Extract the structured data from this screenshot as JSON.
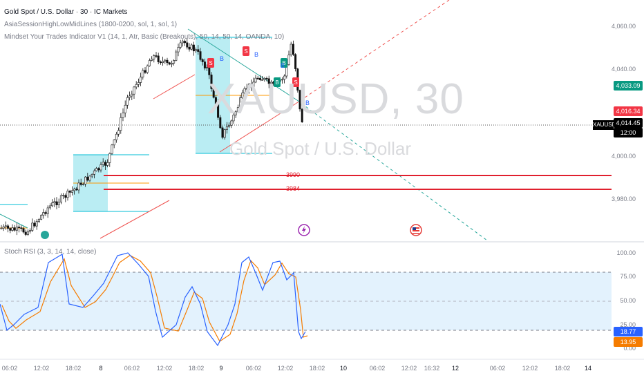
{
  "header": {
    "title": "Gold Spot / U.S. Dollar · 30 · IC Markets",
    "indicator1": "AsiaSessionHighLowMidLines (1800-0200, sol, 1, sol, 1)",
    "indicator2": "Mindset Your Trades Indicator V1 (14, 1, Atr, Basic (Breakouts), 50, 14, 50, 14, OANDA, 10)"
  },
  "watermark": {
    "symbol": "XAUUSD, 30",
    "name": "Gold Spot / U.S. Dollar"
  },
  "price_axis": {
    "ticks": [
      "4,060.00",
      "4,040.00",
      "4,000.00",
      "3,980.00"
    ]
  },
  "price_tags": {
    "green": "4,033.09",
    "red": "4,016.34",
    "symbol": "XAUUSD",
    "current": "4,014.45",
    "countdown": "12:00"
  },
  "levels": [
    {
      "label": "3990"
    },
    {
      "label": "3984"
    }
  ],
  "signals": {
    "sell": "S",
    "buy": "B"
  },
  "rsi": {
    "title": "Stoch RSI (3, 3, 14, 14, close)",
    "ticks": [
      "100.00",
      "75.00",
      "50.00",
      "25.00",
      "0.00"
    ],
    "k_value": "18.77",
    "d_value": "13.95"
  },
  "time_axis": [
    "06:02",
    "12:02",
    "18:02",
    "8",
    "06:02",
    "12:02",
    "18:02",
    "9",
    "06:02",
    "12:02",
    "18:02",
    "10",
    "06:02",
    "12:02",
    "16:32",
    "12",
    "06:02",
    "12:02",
    "18:02",
    "14"
  ],
  "colors": {
    "up": "#26a69a",
    "down": "#ef5350",
    "box": "#b2ebf2",
    "k": "#2962ff",
    "d": "#f57c00",
    "red_line": "#e0202e"
  }
}
